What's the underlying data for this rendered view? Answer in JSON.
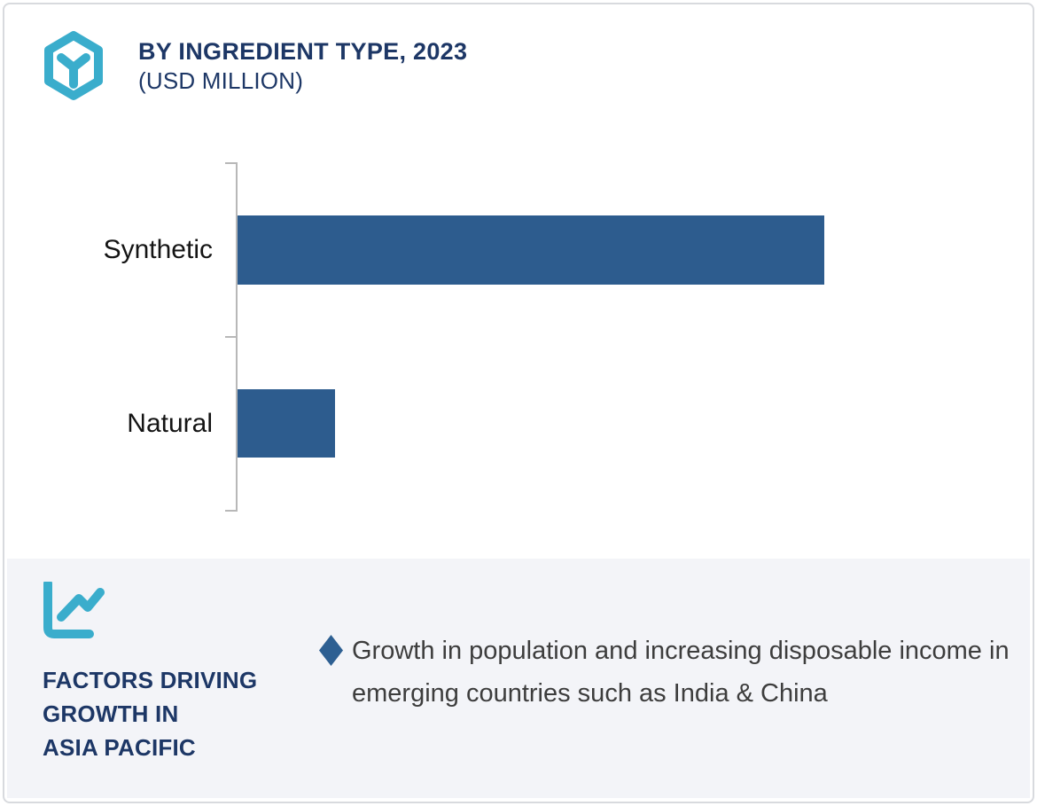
{
  "header": {
    "title": "BY INGREDIENT TYPE, 2023",
    "subtitle": "(USD MILLION)",
    "icon": "hexagon-molecule-icon"
  },
  "chart_data": {
    "type": "bar",
    "orientation": "horizontal",
    "title": "BY INGREDIENT TYPE, 2023 (USD MILLION)",
    "categories": [
      "Synthetic",
      "Natural"
    ],
    "values": [
      100,
      16.6
    ],
    "values_note": "relative bar lengths in % of longest bar; value axis is unlabeled in the figure",
    "bar_color": "#2d5c8e",
    "legend": "none",
    "grid": "off"
  },
  "factors_panel": {
    "icon": "line-chart-icon",
    "title_lines": [
      "FACTORS DRIVING",
      "GROWTH IN",
      "ASIA PACIFIC"
    ],
    "bullet": {
      "marker": "diamond",
      "text": "Growth in population and increasing disposable income in emerging countries such as India & China"
    }
  },
  "colors": {
    "accent_teal": "#3aadcc",
    "navy": "#1d3766",
    "bar_blue": "#2d5c8e",
    "panel_bg": "#f3f4f8",
    "frame_border": "#d8dade",
    "axis_gray": "#b8b8b8",
    "body_text": "#3d3d3d",
    "diamond_blue": "#2d5f92"
  }
}
